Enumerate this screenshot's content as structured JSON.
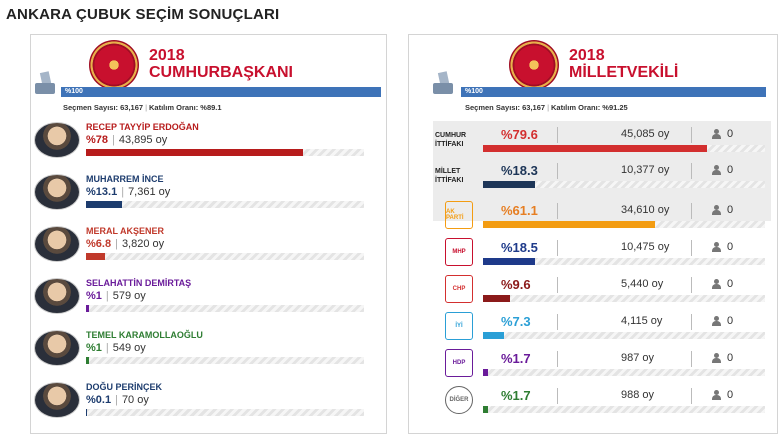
{
  "page_title": "ANKARA ÇUBUK SEÇİM SONUÇLARI",
  "left": {
    "year": "2018",
    "heading": "CUMHURBAŞKANI",
    "turnout_bar_label": "%100",
    "voters_label": "Seçmen Sayısı: 63,167",
    "participation_label": "Katılım Oranı: %89.1",
    "candidates": [
      {
        "name": "RECEP TAYYİP ERDOĞAN",
        "pct": "%78",
        "votes": "43,895 oy",
        "value": 78,
        "color": "#b71c1c"
      },
      {
        "name": "MUHARREM İNCE",
        "pct": "%13.1",
        "votes": "7,361 oy",
        "value": 13.1,
        "color": "#1d3c6e"
      },
      {
        "name": "MERAL AKŞENER",
        "pct": "%6.8",
        "votes": "3,820 oy",
        "value": 6.8,
        "color": "#c0392b"
      },
      {
        "name": "SELAHATTİN DEMİRTAŞ",
        "pct": "%1",
        "votes": "579 oy",
        "value": 1,
        "color": "#6a1b9a"
      },
      {
        "name": "TEMEL KARAMOLLAOĞLU",
        "pct": "%1",
        "votes": "549 oy",
        "value": 1,
        "color": "#2e7d32"
      },
      {
        "name": "DOĞU PERİNÇEK",
        "pct": "%0.1",
        "votes": "70 oy",
        "value": 0.1,
        "color": "#1d3c6e"
      }
    ]
  },
  "right": {
    "year": "2018",
    "heading": "MİLLETVEKİLİ",
    "turnout_bar_label": "%100",
    "voters_label": "Seçmen Sayısı: 63,167",
    "participation_label": "Katılım Oranı: %91.25",
    "alliances": [
      {
        "label_line1": "CUMHUR",
        "label_line2": "İTTİFAKI",
        "pct": "%79.6",
        "votes": "45,085 oy",
        "seats": "0",
        "value": 79.6,
        "color": "#d32f2f"
      },
      {
        "label_line1": "MİLLET",
        "label_line2": "İTTİFAKI",
        "pct": "%18.3",
        "votes": "10,377 oy",
        "seats": "0",
        "value": 18.3,
        "color": "#1d3557"
      }
    ],
    "parties": [
      {
        "logo": "AK PARTİ",
        "logo_icon": "akp-lightbulb-icon",
        "pct": "%61.1",
        "votes": "34,610 oy",
        "seats": "0",
        "value": 61.1,
        "color": "#f39c12",
        "logo_color": "#f39c12"
      },
      {
        "logo": "MHP",
        "logo_icon": "mhp-crescents-icon",
        "pct": "%18.5",
        "votes": "10,475 oy",
        "seats": "0",
        "value": 18.5,
        "color": "#1e3a8a",
        "logo_color": "#c8102e"
      },
      {
        "logo": "CHP",
        "logo_icon": "chp-arrows-icon",
        "pct": "%9.6",
        "votes": "5,440 oy",
        "seats": "0",
        "value": 9.6,
        "color": "#8b1a1a",
        "logo_color": "#d32f2f"
      },
      {
        "logo": "İYİ",
        "logo_icon": "iyi-sun-icon",
        "pct": "%7.3",
        "votes": "4,115 oy",
        "seats": "0",
        "value": 7.3,
        "color": "#2a9fd6",
        "logo_color": "#2a9fd6"
      },
      {
        "logo": "HDP",
        "logo_icon": "hdp-tree-icon",
        "pct": "%1.7",
        "votes": "987 oy",
        "seats": "0",
        "value": 1.7,
        "color": "#6a1b9a",
        "logo_color": "#6a1b9a"
      },
      {
        "logo": "DİĞER",
        "logo_icon": "other-circle-icon",
        "pct": "%1.7",
        "votes": "988 oy",
        "seats": "0",
        "value": 1.7,
        "color": "#2e7d32",
        "logo_color": "#666666"
      }
    ]
  }
}
